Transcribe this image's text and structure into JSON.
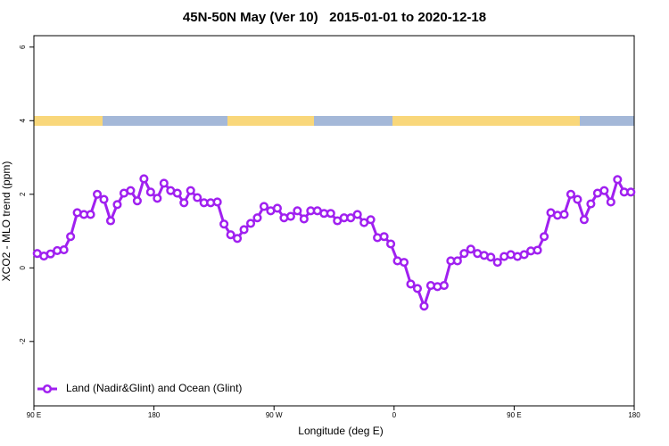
{
  "chart_data": {
    "type": "line",
    "title": "45N-50N May (Ver 10)   2015-01-01 to 2020-12-18",
    "xlabel": "Longitude (deg E)",
    "ylabel": "XCO2 - MLO trend (ppm)",
    "x": [
      92.5,
      97.5,
      102.5,
      107.5,
      112.5,
      117.5,
      122.5,
      127.5,
      132.5,
      137.5,
      142.5,
      147.5,
      152.5,
      157.5,
      162.5,
      167.5,
      172.5,
      177.5,
      182.5,
      187.5,
      192.5,
      197.5,
      202.5,
      207.5,
      212.5,
      217.5,
      222.5,
      227.5,
      232.5,
      237.5,
      242.5,
      247.5,
      252.5,
      257.5,
      262.5,
      267.5,
      272.5,
      277.5,
      282.5,
      287.5,
      292.5,
      297.5,
      302.5,
      307.5,
      312.5,
      317.5,
      322.5,
      327.5,
      332.5,
      337.5,
      342.5,
      347.5,
      352.5,
      357.5,
      362.5,
      367.5,
      372.5,
      377.5,
      382.5,
      387.5,
      392.5,
      397.5,
      402.5,
      407.5,
      412.5,
      417.5,
      422.5,
      427.5,
      432.5,
      437.5,
      442.5,
      447.5,
      452.5,
      457.5,
      462.5,
      467.5,
      472.5,
      477.5,
      482.5,
      487.5,
      492.5,
      497.5,
      502.5,
      507.5,
      512.5,
      517.5,
      522.5,
      527.5,
      532.5,
      537.5
    ],
    "series": [
      {
        "name": "Land (Nadir&Glint) and Ocean (Glint)",
        "color": "#a020f0",
        "values": [
          0.39,
          0.32,
          0.38,
          0.47,
          0.49,
          0.85,
          1.5,
          1.45,
          1.45,
          2.0,
          1.86,
          1.28,
          1.72,
          2.03,
          2.1,
          1.82,
          2.42,
          2.06,
          1.89,
          2.3,
          2.1,
          2.03,
          1.77,
          2.1,
          1.91,
          1.77,
          1.77,
          1.79,
          1.19,
          0.9,
          0.8,
          1.04,
          1.21,
          1.36,
          1.67,
          1.55,
          1.62,
          1.36,
          1.4,
          1.55,
          1.33,
          1.55,
          1.55,
          1.48,
          1.48,
          1.28,
          1.36,
          1.36,
          1.45,
          1.23,
          1.31,
          0.82,
          0.85,
          0.65,
          0.19,
          0.15,
          -0.44,
          -0.56,
          -1.04,
          -0.48,
          -0.51,
          -0.48,
          0.19,
          0.19,
          0.39,
          0.51,
          0.39,
          0.34,
          0.29,
          0.15,
          0.31,
          0.36,
          0.31,
          0.36,
          0.46,
          0.48,
          0.85,
          1.5,
          1.43,
          1.45,
          2.0,
          1.86,
          1.31,
          1.74,
          2.03,
          2.1,
          1.79,
          2.4,
          2.06,
          2.06
        ]
      }
    ],
    "xlim": [
      90,
      540
    ],
    "xticks": [
      {
        "value": 90,
        "label": "90 E"
      },
      180,
      {
        "value": 270,
        "label": "90 W"
      },
      {
        "value": 360,
        "label": "0"
      },
      {
        "value": 450,
        "label": "90 E"
      },
      {
        "value": 540,
        "label": "180"
      }
    ],
    "ylim": [
      -3.75,
      6.31
    ],
    "yticks": [
      -2,
      0,
      2,
      4,
      6
    ],
    "legend": "bottom-left"
  }
}
